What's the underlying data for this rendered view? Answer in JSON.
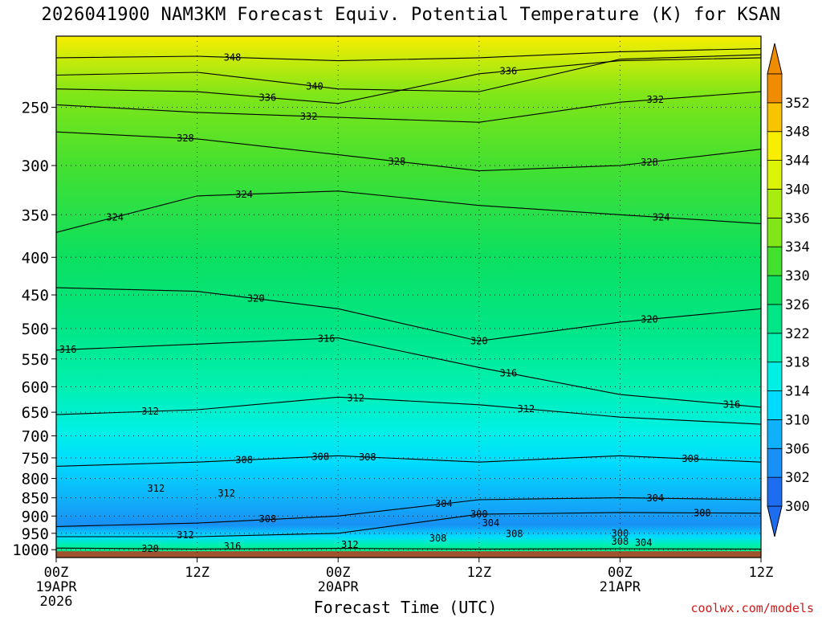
{
  "chart_data": {
    "type": "contour",
    "title": "2026041900 NAM3KM Forecast Equiv. Potential Temperature (K) for KSAN",
    "xlabel": "Forecast Time (UTC)",
    "ylabel": "",
    "y_axis": {
      "levels": [
        250,
        300,
        350,
        400,
        450,
        500,
        550,
        600,
        650,
        700,
        750,
        800,
        850,
        900,
        950,
        1000
      ],
      "range": [
        200,
        1025
      ]
    },
    "x_axis": {
      "range_hours": [
        0,
        60
      ],
      "ticks": [
        {
          "hour": 0,
          "line1": "00Z",
          "line2": "19APR",
          "line3": "2026"
        },
        {
          "hour": 12,
          "line1": "12Z",
          "line2": "",
          "line3": ""
        },
        {
          "hour": 24,
          "line1": "00Z",
          "line2": "20APR",
          "line3": ""
        },
        {
          "hour": 36,
          "line1": "12Z",
          "line2": "",
          "line3": ""
        },
        {
          "hour": 48,
          "line1": "00Z",
          "line2": "21APR",
          "line3": ""
        },
        {
          "hour": 60,
          "line1": "12Z",
          "line2": "",
          "line3": ""
        }
      ]
    },
    "colorbar": {
      "labels": [
        300,
        302,
        306,
        310,
        314,
        318,
        322,
        326,
        330,
        334,
        336,
        340,
        344,
        348,
        352
      ],
      "colors": [
        "#1e6cf0",
        "#1890f5",
        "#0fb2fa",
        "#00dcff",
        "#00f0e6",
        "#00f0b0",
        "#00e686",
        "#0ce060",
        "#44e030",
        "#80e618",
        "#a8ec10",
        "#dcf408",
        "#f8ee00",
        "#f8c400",
        "#f08c00"
      ]
    },
    "background_bands": [
      {
        "p": 200,
        "theta": 344
      },
      {
        "p": 240,
        "theta": 334
      },
      {
        "p": 300,
        "theta": 330
      },
      {
        "p": 400,
        "theta": 326
      },
      {
        "p": 500,
        "theta": 322
      },
      {
        "p": 600,
        "theta": 318
      },
      {
        "p": 690,
        "theta": 314
      },
      {
        "p": 760,
        "theta": 310
      },
      {
        "p": 850,
        "theta": 306
      },
      {
        "p": 925,
        "theta": 302
      },
      {
        "p": 960,
        "theta": 310
      },
      {
        "p": 985,
        "theta": 318
      },
      {
        "p": 1005,
        "theta": 322
      }
    ],
    "contours": [
      {
        "value": 348,
        "p": [
          214,
          213,
          216,
          214,
          210,
          208
        ],
        "labels": [
          {
            "hour": 15,
            "text": "348"
          }
        ]
      },
      {
        "value": 340,
        "p": [
          226,
          224,
          236,
          238,
          215,
          212
        ],
        "labels": [
          {
            "hour": 22,
            "text": "340"
          }
        ]
      },
      {
        "value": 336,
        "p": [
          236,
          238,
          247,
          225,
          216,
          214
        ],
        "labels": [
          {
            "hour": 18,
            "text": "336"
          },
          {
            "hour": 38.5,
            "text": "336"
          }
        ]
      },
      {
        "value": 332,
        "p": [
          248,
          254,
          258,
          262,
          246,
          238
        ],
        "labels": [
          {
            "hour": 21.5,
            "text": "332"
          },
          {
            "hour": 51,
            "text": "332"
          }
        ]
      },
      {
        "value": 328,
        "p": [
          270,
          276,
          290,
          305,
          300,
          285
        ],
        "labels": [
          {
            "hour": 11,
            "text": "328"
          },
          {
            "hour": 29,
            "text": "328"
          },
          {
            "hour": 50.5,
            "text": "328"
          }
        ]
      },
      {
        "value": 324,
        "p": [
          370,
          330,
          325,
          340,
          350,
          360
        ],
        "labels": [
          {
            "hour": 5,
            "text": "324"
          },
          {
            "hour": 16,
            "text": "324"
          },
          {
            "hour": 51.5,
            "text": "324"
          }
        ]
      },
      {
        "value": 320,
        "p": [
          440,
          445,
          470,
          520,
          490,
          470
        ],
        "labels": [
          {
            "hour": 17,
            "text": "320"
          },
          {
            "hour": 36,
            "text": "320"
          },
          {
            "hour": 50.5,
            "text": "320"
          }
        ]
      },
      {
        "value": 316,
        "p": [
          535,
          525,
          515,
          565,
          615,
          640
        ],
        "labels": [
          {
            "hour": 1,
            "text": "316"
          },
          {
            "hour": 23,
            "text": "316"
          },
          {
            "hour": 38.5,
            "text": "316"
          },
          {
            "hour": 57.5,
            "text": "316"
          }
        ]
      },
      {
        "value": 312,
        "p": [
          655,
          645,
          620,
          635,
          660,
          675
        ],
        "labels": [
          {
            "hour": 8,
            "text": "312"
          },
          {
            "hour": 25.5,
            "text": "312"
          },
          {
            "hour": 40,
            "text": "312"
          },
          {
            "hour": 8.5,
            "p": 825,
            "text": "312"
          },
          {
            "hour": 14.5,
            "p": 838,
            "text": "312"
          },
          {
            "hour": 11,
            "p": 955,
            "text": "312"
          },
          {
            "hour": 25,
            "p": 985,
            "text": "312"
          }
        ]
      },
      {
        "value": 308,
        "p": [
          770,
          760,
          745,
          760,
          745,
          760
        ],
        "labels": [
          {
            "hour": 16,
            "text": "308"
          },
          {
            "hour": 22.5,
            "text": "308"
          },
          {
            "hour": 26.5,
            "text": "308"
          },
          {
            "hour": 54,
            "text": "308"
          },
          {
            "hour": 18,
            "p": 908,
            "text": "308"
          },
          {
            "hour": 32.5,
            "p": 965,
            "text": "308"
          },
          {
            "hour": 39,
            "p": 952,
            "text": "308"
          },
          {
            "hour": 48,
            "p": 975,
            "text": "308"
          }
        ]
      },
      {
        "value": 304,
        "p": [
          930,
          920,
          900,
          855,
          850,
          855
        ],
        "labels": [
          {
            "hour": 33,
            "text": "304"
          },
          {
            "hour": 51,
            "text": "304"
          },
          {
            "hour": 37,
            "p": 920,
            "text": "304"
          },
          {
            "hour": 50,
            "p": 978,
            "text": "304"
          }
        ]
      },
      {
        "value": 300,
        "p": [
          960,
          960,
          950,
          895,
          890,
          892
        ],
        "labels": [
          {
            "hour": 36,
            "text": "300"
          },
          {
            "hour": 55,
            "text": "300"
          },
          {
            "hour": 48,
            "p": 950,
            "text": "300"
          }
        ]
      },
      {
        "value": 320,
        "p": [
          995,
          998,
          996,
          998,
          997,
          998
        ],
        "labels": [
          {
            "hour": 8,
            "text": "320"
          },
          {
            "hour": 15,
            "p": 990,
            "text": "316"
          }
        ]
      }
    ]
  },
  "credit": "coolwx.com/models"
}
